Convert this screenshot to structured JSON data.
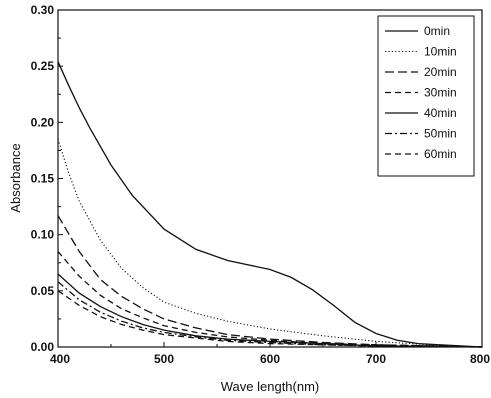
{
  "chart_data": {
    "type": "line",
    "title": "",
    "xlabel": "Wave length(nm)",
    "ylabel": "Absorbance",
    "xlim": [
      400,
      800
    ],
    "ylim": [
      0.0,
      0.3
    ],
    "x_ticks": [
      "400",
      "500",
      "600",
      "700",
      "800"
    ],
    "y_ticks": [
      "0.00",
      "0.05",
      "0.10",
      "0.15",
      "0.20",
      "0.25",
      "0.30"
    ],
    "grid": false,
    "legend_position": "top-right",
    "series": [
      {
        "name": "0min",
        "dash": "solid",
        "x": [
          400,
          410,
          420,
          430,
          450,
          470,
          500,
          530,
          560,
          600,
          620,
          640,
          660,
          680,
          700,
          720,
          740,
          760,
          780,
          800
        ],
        "y": [
          0.254,
          0.233,
          0.213,
          0.195,
          0.162,
          0.135,
          0.105,
          0.087,
          0.077,
          0.069,
          0.062,
          0.051,
          0.037,
          0.022,
          0.012,
          0.006,
          0.003,
          0.002,
          0.001,
          0.0
        ]
      },
      {
        "name": "10min",
        "dash": "dotted",
        "x": [
          400,
          410,
          420,
          440,
          460,
          480,
          500,
          530,
          560,
          600,
          650,
          700,
          750,
          800
        ],
        "y": [
          0.185,
          0.155,
          0.13,
          0.095,
          0.07,
          0.053,
          0.04,
          0.03,
          0.023,
          0.016,
          0.01,
          0.005,
          0.002,
          0.0
        ]
      },
      {
        "name": "20min",
        "dash": "longdash",
        "x": [
          400,
          420,
          440,
          460,
          480,
          500,
          530,
          560,
          600,
          650,
          700,
          800
        ],
        "y": [
          0.117,
          0.085,
          0.06,
          0.045,
          0.034,
          0.025,
          0.017,
          0.011,
          0.007,
          0.004,
          0.002,
          0.0
        ]
      },
      {
        "name": "30min",
        "dash": "dashed",
        "x": [
          400,
          420,
          440,
          460,
          480,
          500,
          530,
          560,
          600,
          650,
          700,
          800
        ],
        "y": [
          0.085,
          0.063,
          0.046,
          0.034,
          0.026,
          0.019,
          0.013,
          0.009,
          0.006,
          0.003,
          0.002,
          0.0
        ]
      },
      {
        "name": "40min",
        "dash": "solid",
        "x": [
          400,
          420,
          440,
          460,
          480,
          500,
          530,
          560,
          600,
          650,
          700,
          800
        ],
        "y": [
          0.065,
          0.048,
          0.036,
          0.027,
          0.02,
          0.015,
          0.01,
          0.007,
          0.005,
          0.003,
          0.001,
          0.0
        ]
      },
      {
        "name": "50min",
        "dash": "dashdot",
        "x": [
          400,
          420,
          440,
          460,
          480,
          500,
          530,
          560,
          600,
          650,
          700,
          800
        ],
        "y": [
          0.058,
          0.042,
          0.031,
          0.023,
          0.017,
          0.013,
          0.009,
          0.006,
          0.004,
          0.002,
          0.001,
          0.0
        ]
      },
      {
        "name": "60min",
        "dash": "dashed",
        "x": [
          400,
          420,
          440,
          460,
          480,
          500,
          530,
          560,
          600,
          650,
          700,
          800
        ],
        "y": [
          0.05,
          0.037,
          0.027,
          0.02,
          0.015,
          0.011,
          0.008,
          0.005,
          0.003,
          0.002,
          0.001,
          0.0
        ]
      }
    ]
  }
}
